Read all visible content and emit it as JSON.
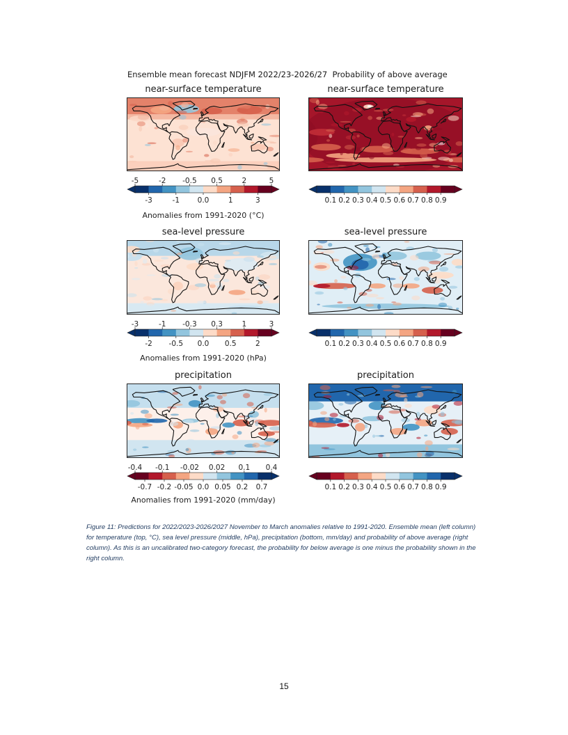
{
  "header": {
    "left": "Ensemble mean forecast NDJFM 2022/23-2026/27",
    "right": "Probability of above average"
  },
  "panels": [
    {
      "id": "temp-mean",
      "title": "near-surface temperature",
      "colorbar": "anom_temp",
      "style": "temp_mean"
    },
    {
      "id": "temp-prob",
      "title": "near-surface temperature",
      "colorbar": "prob_warm",
      "style": "temp_prob"
    },
    {
      "id": "slp-mean",
      "title": "sea-level pressure",
      "colorbar": "anom_slp",
      "style": "slp_mean"
    },
    {
      "id": "slp-prob",
      "title": "sea-level pressure",
      "colorbar": "prob_warm",
      "style": "slp_prob"
    },
    {
      "id": "precip-mean",
      "title": "precipitation",
      "colorbar": "anom_precip",
      "style": "precip_mean"
    },
    {
      "id": "precip-prob",
      "title": "precipitation",
      "colorbar": "prob_wet",
      "style": "precip_prob"
    }
  ],
  "colorbars": {
    "anom_temp": {
      "colors": [
        "#08306b",
        "#2166ac",
        "#4393c3",
        "#92c5de",
        "#d1e5f0",
        "#fddbc7",
        "#f4a582",
        "#d6604d",
        "#b2182b",
        "#67001f"
      ],
      "top_ticks": [
        "-5",
        "-2",
        "-0.5",
        "0.5",
        "2",
        "5"
      ],
      "bottom_ticks": [
        "-3",
        "-1",
        "0.0",
        "1",
        "3"
      ],
      "label": "Anomalies from 1991-2020 (°C)"
    },
    "anom_slp": {
      "colors": [
        "#08306b",
        "#2166ac",
        "#4393c3",
        "#92c5de",
        "#d1e5f0",
        "#fddbc7",
        "#f4a582",
        "#d6604d",
        "#b2182b",
        "#67001f"
      ],
      "top_ticks": [
        "-3",
        "-1",
        "-0.3",
        "0.3",
        "1",
        "3"
      ],
      "bottom_ticks": [
        "-2",
        "-0.5",
        "0.0",
        "0.5",
        "2"
      ],
      "label": "Anomalies from 1991-2020 (hPa)"
    },
    "anom_precip": {
      "colors": [
        "#67001f",
        "#b2182b",
        "#d6604d",
        "#f4a582",
        "#fddbc7",
        "#d1e5f0",
        "#92c5de",
        "#4393c3",
        "#2166ac",
        "#08306b"
      ],
      "top_ticks": [
        "-0.4",
        "-0.1",
        "-0.02",
        "0.02",
        "0.1",
        "0.4"
      ],
      "bottom_ticks": [
        "-0.7",
        "-0.2",
        "-0.05",
        "0.0",
        "0.05",
        "0.2",
        "0.7"
      ],
      "label": "Anomalies from 1991-2020 (mm/day)"
    },
    "prob_warm": {
      "colors": [
        "#08306b",
        "#2166ac",
        "#4393c3",
        "#92c5de",
        "#d1e5f0",
        "#fddbc7",
        "#f4a582",
        "#d6604d",
        "#b2182b",
        "#67001f"
      ],
      "top_ticks": [],
      "bottom_ticks": [
        "0.1",
        "0.2",
        "0.3",
        "0.4",
        "0.5",
        "0.6",
        "0.7",
        "0.8",
        "0.9"
      ],
      "label": ""
    },
    "prob_wet": {
      "colors": [
        "#67001f",
        "#b2182b",
        "#d6604d",
        "#f4a582",
        "#fddbc7",
        "#d1e5f0",
        "#92c5de",
        "#4393c3",
        "#2166ac",
        "#08306b"
      ],
      "top_ticks": [],
      "bottom_ticks": [
        "0.1",
        "0.2",
        "0.3",
        "0.4",
        "0.5",
        "0.6",
        "0.7",
        "0.8",
        "0.9"
      ],
      "label": ""
    }
  },
  "caption": "Figure 11: Predictions for 2022/2023-2026/2027 November to March anomalies relative to 1991-2020. Ensemble mean (left column) for temperature (top, °C), sea level pressure (middle, hPa), precipitation (bottom, mm/day) and probability of above average (right column). As this is an uncalibrated two-category forecast, the probability for below average is one minus the probability shown in the right column.",
  "page_number": "15"
}
